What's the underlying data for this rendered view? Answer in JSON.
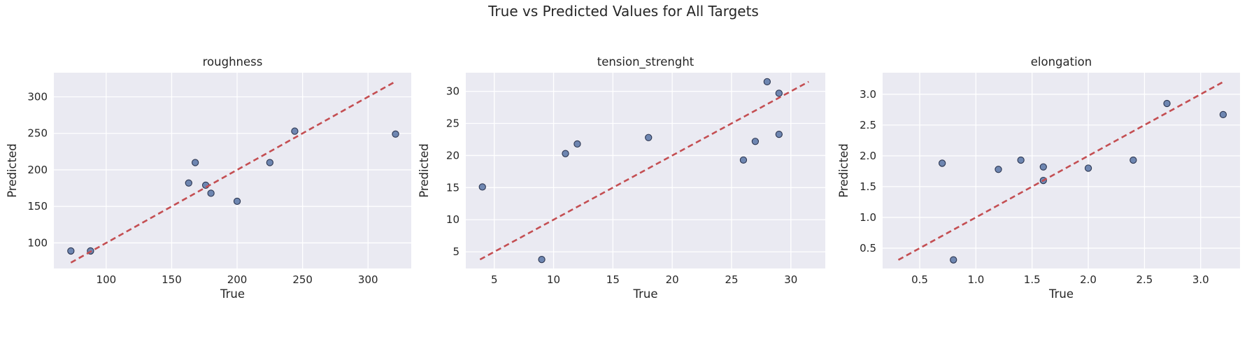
{
  "figure": {
    "title": "True vs Predicted Values for All Targets"
  },
  "chart_data": [
    {
      "type": "scatter",
      "title": "roughness",
      "xlabel": "True",
      "ylabel": "Predicted",
      "xlim": [
        60,
        333
      ],
      "ylim": [
        65,
        333
      ],
      "xticks": [
        100,
        150,
        200,
        250,
        300
      ],
      "yticks": [
        100,
        150,
        200,
        250,
        300
      ],
      "x": [
        73,
        88,
        163,
        168,
        176,
        180,
        200,
        225,
        244,
        321
      ],
      "y": [
        89,
        89,
        182,
        210,
        179,
        168,
        157,
        210,
        253,
        249
      ],
      "reference_line": [
        73,
        321
      ],
      "grid": true,
      "point_color": "#5874a6",
      "line_color": "#c44e52"
    },
    {
      "type": "scatter",
      "title": "tension_strenght",
      "xlabel": "True",
      "ylabel": "Predicted",
      "xlim": [
        2.6,
        32.9
      ],
      "ylim": [
        2.4,
        32.9
      ],
      "xticks": [
        5,
        10,
        15,
        20,
        25,
        30
      ],
      "yticks": [
        5,
        10,
        15,
        20,
        25,
        30
      ],
      "x": [
        4,
        9,
        11,
        12,
        18,
        26,
        27,
        28,
        29,
        29
      ],
      "y": [
        15.1,
        3.8,
        20.3,
        21.8,
        22.8,
        19.3,
        22.2,
        31.5,
        29.7,
        23.3
      ],
      "reference_line": [
        3.8,
        31.5
      ],
      "grid": true,
      "point_color": "#5874a6",
      "line_color": "#c44e52"
    },
    {
      "type": "scatter",
      "title": "elongation",
      "xlabel": "True",
      "ylabel": "Predicted",
      "xlim": [
        0.17,
        3.35
      ],
      "ylim": [
        0.17,
        3.35
      ],
      "xticks": [
        0.5,
        1.0,
        1.5,
        2.0,
        2.5,
        3.0
      ],
      "yticks": [
        0.5,
        1.0,
        1.5,
        2.0,
        2.5,
        3.0
      ],
      "x": [
        0.7,
        0.8,
        1.2,
        1.4,
        1.6,
        1.6,
        2.0,
        2.4,
        2.7,
        3.2
      ],
      "y": [
        1.88,
        0.31,
        1.78,
        1.93,
        1.82,
        1.6,
        1.8,
        1.93,
        2.85,
        2.67
      ],
      "reference_line": [
        0.31,
        3.2
      ],
      "grid": true,
      "point_color": "#5874a6",
      "line_color": "#c44e52"
    }
  ]
}
